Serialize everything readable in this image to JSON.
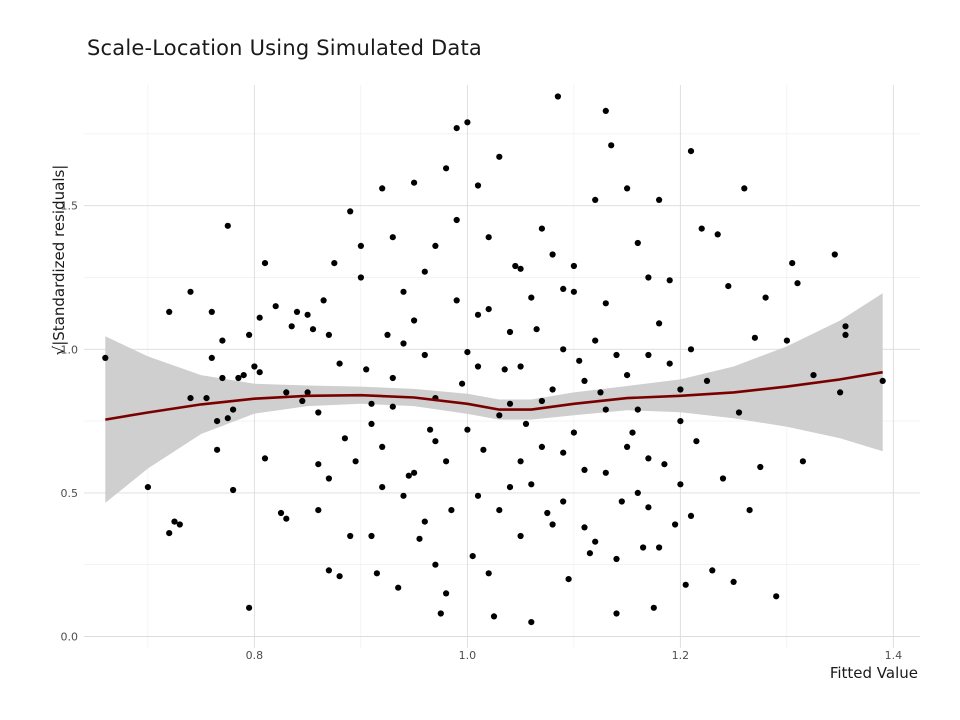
{
  "chart_data": {
    "type": "scatter",
    "title": "Scale-Location Using Simulated Data",
    "xlabel": "Fitted Value",
    "ylabel": "√|Standardized residuals|",
    "xlim": [
      0.64,
      1.425
    ],
    "ylim": [
      -0.04,
      1.92
    ],
    "x_ticks": [
      0.8,
      1.0,
      1.2,
      1.4
    ],
    "x_tick_labels": [
      "0.8",
      "1.0",
      "1.2",
      "1.4"
    ],
    "y_ticks": [
      0.0,
      0.5,
      1.0,
      1.5
    ],
    "y_tick_labels": [
      "0.0",
      "0.5",
      "1.0",
      "1.5"
    ],
    "grid": true,
    "point_color": "#000000",
    "smooth_color": "#7a0000",
    "band_color": "#cccccc",
    "points": [
      [
        0.66,
        0.97
      ],
      [
        0.7,
        0.52
      ],
      [
        0.72,
        1.13
      ],
      [
        0.72,
        0.36
      ],
      [
        0.725,
        0.4
      ],
      [
        0.73,
        0.39
      ],
      [
        0.74,
        1.2
      ],
      [
        0.74,
        0.83
      ],
      [
        0.755,
        0.83
      ],
      [
        0.76,
        1.13
      ],
      [
        0.76,
        0.97
      ],
      [
        0.765,
        0.75
      ],
      [
        0.765,
        0.65
      ],
      [
        0.77,
        0.9
      ],
      [
        0.77,
        1.03
      ],
      [
        0.775,
        1.43
      ],
      [
        0.775,
        0.76
      ],
      [
        0.78,
        0.51
      ],
      [
        0.78,
        0.79
      ],
      [
        0.785,
        0.9
      ],
      [
        0.79,
        0.91
      ],
      [
        0.795,
        1.05
      ],
      [
        0.795,
        0.1
      ],
      [
        0.8,
        0.94
      ],
      [
        0.805,
        1.11
      ],
      [
        0.805,
        0.92
      ],
      [
        0.81,
        1.3
      ],
      [
        0.81,
        0.62
      ],
      [
        0.82,
        1.15
      ],
      [
        0.825,
        0.43
      ],
      [
        0.83,
        0.41
      ],
      [
        0.83,
        0.85
      ],
      [
        0.835,
        1.08
      ],
      [
        0.84,
        1.13
      ],
      [
        0.845,
        0.82
      ],
      [
        0.85,
        1.12
      ],
      [
        0.85,
        0.85
      ],
      [
        0.855,
        1.07
      ],
      [
        0.86,
        0.78
      ],
      [
        0.86,
        0.44
      ],
      [
        0.865,
        1.17
      ],
      [
        0.87,
        0.55
      ],
      [
        0.87,
        0.23
      ],
      [
        0.875,
        1.3
      ],
      [
        0.88,
        0.21
      ],
      [
        0.885,
        0.69
      ],
      [
        0.89,
        1.48
      ],
      [
        0.895,
        0.61
      ],
      [
        0.9,
        1.36
      ],
      [
        0.905,
        0.93
      ],
      [
        0.91,
        0.35
      ],
      [
        0.915,
        0.22
      ],
      [
        0.92,
        1.56
      ],
      [
        0.925,
        1.05
      ],
      [
        0.93,
        0.8
      ],
      [
        0.935,
        0.17
      ],
      [
        0.94,
        1.2
      ],
      [
        0.945,
        0.56
      ],
      [
        0.95,
        1.58
      ],
      [
        0.955,
        0.34
      ],
      [
        0.96,
        0.98
      ],
      [
        0.965,
        0.72
      ],
      [
        0.97,
        1.36
      ],
      [
        0.975,
        0.08
      ],
      [
        0.98,
        1.63
      ],
      [
        0.985,
        0.44
      ],
      [
        0.99,
        1.77
      ],
      [
        0.995,
        0.88
      ],
      [
        1.0,
        1.79
      ],
      [
        1.005,
        0.28
      ],
      [
        1.01,
        1.57
      ],
      [
        1.015,
        0.65
      ],
      [
        1.02,
        1.14
      ],
      [
        1.025,
        0.07
      ],
      [
        1.03,
        1.67
      ],
      [
        1.035,
        0.93
      ],
      [
        1.04,
        0.52
      ],
      [
        1.045,
        1.29
      ],
      [
        1.05,
        0.35
      ],
      [
        1.055,
        0.74
      ],
      [
        1.06,
        0.05
      ],
      [
        1.065,
        1.07
      ],
      [
        1.07,
        0.82
      ],
      [
        1.075,
        0.43
      ],
      [
        1.08,
        1.33
      ],
      [
        1.085,
        1.88
      ],
      [
        1.09,
        0.64
      ],
      [
        1.095,
        0.2
      ],
      [
        1.1,
        1.2
      ],
      [
        1.105,
        0.96
      ],
      [
        1.11,
        0.58
      ],
      [
        1.115,
        0.29
      ],
      [
        1.12,
        1.52
      ],
      [
        1.125,
        0.85
      ],
      [
        1.13,
        1.83
      ],
      [
        1.135,
        1.71
      ],
      [
        1.14,
        0.08
      ],
      [
        1.145,
        0.47
      ],
      [
        1.15,
        1.56
      ],
      [
        1.155,
        0.71
      ],
      [
        1.16,
        1.37
      ],
      [
        1.165,
        0.31
      ],
      [
        1.17,
        0.98
      ],
      [
        1.175,
        0.1
      ],
      [
        1.18,
        1.52
      ],
      [
        1.185,
        0.6
      ],
      [
        1.19,
        1.24
      ],
      [
        1.195,
        0.39
      ],
      [
        1.2,
        0.86
      ],
      [
        1.205,
        0.18
      ],
      [
        1.21,
        1.69
      ],
      [
        1.215,
        0.68
      ],
      [
        1.22,
        1.42
      ],
      [
        1.225,
        0.89
      ],
      [
        1.23,
        0.23
      ],
      [
        1.235,
        1.4
      ],
      [
        1.24,
        0.55
      ],
      [
        1.245,
        1.22
      ],
      [
        1.25,
        0.19
      ],
      [
        1.255,
        0.78
      ],
      [
        1.26,
        1.56
      ],
      [
        1.265,
        0.44
      ],
      [
        1.27,
        1.04
      ],
      [
        1.275,
        0.59
      ],
      [
        1.28,
        1.18
      ],
      [
        1.29,
        0.14
      ],
      [
        1.3,
        1.03
      ],
      [
        1.305,
        1.3
      ],
      [
        1.31,
        1.23
      ],
      [
        1.315,
        0.61
      ],
      [
        1.325,
        0.91
      ],
      [
        1.345,
        1.33
      ],
      [
        1.35,
        0.85
      ],
      [
        1.355,
        1.08
      ],
      [
        1.355,
        1.05
      ],
      [
        1.39,
        0.89
      ],
      [
        0.9,
        1.25
      ],
      [
        0.92,
        0.52
      ],
      [
        0.95,
        1.1
      ],
      [
        0.97,
        0.25
      ],
      [
        0.99,
        1.45
      ],
      [
        1.01,
        1.12
      ],
      [
        1.03,
        0.44
      ],
      [
        1.05,
        1.28
      ],
      [
        1.07,
        0.66
      ],
      [
        1.09,
        1.0
      ],
      [
        1.11,
        0.38
      ],
      [
        1.13,
        1.16
      ],
      [
        1.15,
        0.91
      ],
      [
        1.17,
        0.62
      ],
      [
        1.19,
        0.95
      ],
      [
        1.21,
        0.42
      ],
      [
        0.88,
        0.95
      ],
      [
        0.91,
        0.74
      ],
      [
        0.94,
        0.49
      ],
      [
        0.96,
        1.27
      ],
      [
        0.98,
        0.61
      ],
      [
        1.0,
        0.99
      ],
      [
        1.02,
        0.22
      ],
      [
        1.04,
        0.81
      ],
      [
        1.06,
        1.18
      ],
      [
        1.08,
        0.39
      ],
      [
        1.1,
        0.71
      ],
      [
        1.12,
        1.03
      ],
      [
        1.14,
        0.27
      ],
      [
        1.16,
        0.79
      ],
      [
        1.18,
        1.09
      ],
      [
        1.2,
        0.53
      ],
      [
        0.89,
        0.35
      ],
      [
        0.93,
        1.39
      ],
      [
        0.97,
        0.83
      ],
      [
        1.01,
        0.49
      ],
      [
        1.05,
        0.94
      ],
      [
        1.09,
        1.21
      ],
      [
        1.13,
        0.57
      ],
      [
        1.17,
        1.25
      ],
      [
        0.92,
        0.66
      ],
      [
        0.96,
        0.4
      ],
      [
        1.0,
        0.72
      ],
      [
        1.04,
        1.06
      ],
      [
        1.08,
        0.86
      ],
      [
        1.12,
        0.33
      ],
      [
        1.16,
        0.5
      ],
      [
        1.2,
        0.75
      ],
      [
        0.87,
        1.05
      ],
      [
        0.91,
        0.81
      ],
      [
        0.95,
        0.57
      ],
      [
        0.99,
        1.17
      ],
      [
        1.03,
        0.77
      ],
      [
        1.07,
        1.42
      ],
      [
        1.11,
        0.89
      ],
      [
        1.15,
        0.66
      ],
      [
        0.86,
        0.6
      ],
      [
        0.94,
        1.02
      ],
      [
        0.98,
        0.15
      ],
      [
        1.02,
        1.39
      ],
      [
        1.06,
        0.53
      ],
      [
        1.1,
        1.29
      ],
      [
        1.14,
        0.98
      ],
      [
        1.18,
        0.31
      ],
      [
        0.93,
        0.9
      ],
      [
        0.97,
        0.68
      ],
      [
        1.01,
        0.94
      ],
      [
        1.05,
        0.61
      ],
      [
        1.09,
        0.47
      ],
      [
        1.13,
        0.79
      ],
      [
        1.17,
        0.45
      ],
      [
        1.21,
        1.0
      ]
    ],
    "smooth": [
      [
        0.66,
        0.755
      ],
      [
        0.7,
        0.78
      ],
      [
        0.75,
        0.808
      ],
      [
        0.8,
        0.828
      ],
      [
        0.85,
        0.838
      ],
      [
        0.9,
        0.84
      ],
      [
        0.95,
        0.832
      ],
      [
        1.0,
        0.81
      ],
      [
        1.03,
        0.79
      ],
      [
        1.06,
        0.79
      ],
      [
        1.1,
        0.81
      ],
      [
        1.15,
        0.83
      ],
      [
        1.2,
        0.838
      ],
      [
        1.25,
        0.85
      ],
      [
        1.3,
        0.87
      ],
      [
        1.35,
        0.895
      ],
      [
        1.39,
        0.92
      ]
    ],
    "band_upper": [
      [
        0.66,
        1.045
      ],
      [
        0.7,
        0.975
      ],
      [
        0.75,
        0.91
      ],
      [
        0.8,
        0.88
      ],
      [
        0.85,
        0.874
      ],
      [
        0.9,
        0.87
      ],
      [
        0.95,
        0.862
      ],
      [
        1.0,
        0.845
      ],
      [
        1.03,
        0.825
      ],
      [
        1.06,
        0.825
      ],
      [
        1.1,
        0.85
      ],
      [
        1.15,
        0.872
      ],
      [
        1.2,
        0.895
      ],
      [
        1.25,
        0.94
      ],
      [
        1.3,
        1.01
      ],
      [
        1.35,
        1.1
      ],
      [
        1.39,
        1.195
      ]
    ],
    "band_lower": [
      [
        0.66,
        0.465
      ],
      [
        0.7,
        0.585
      ],
      [
        0.75,
        0.705
      ],
      [
        0.8,
        0.776
      ],
      [
        0.85,
        0.802
      ],
      [
        0.9,
        0.81
      ],
      [
        0.95,
        0.802
      ],
      [
        1.0,
        0.775
      ],
      [
        1.03,
        0.755
      ],
      [
        1.06,
        0.755
      ],
      [
        1.1,
        0.77
      ],
      [
        1.15,
        0.788
      ],
      [
        1.2,
        0.781
      ],
      [
        1.25,
        0.76
      ],
      [
        1.3,
        0.73
      ],
      [
        1.35,
        0.69
      ],
      [
        1.39,
        0.645
      ]
    ]
  }
}
